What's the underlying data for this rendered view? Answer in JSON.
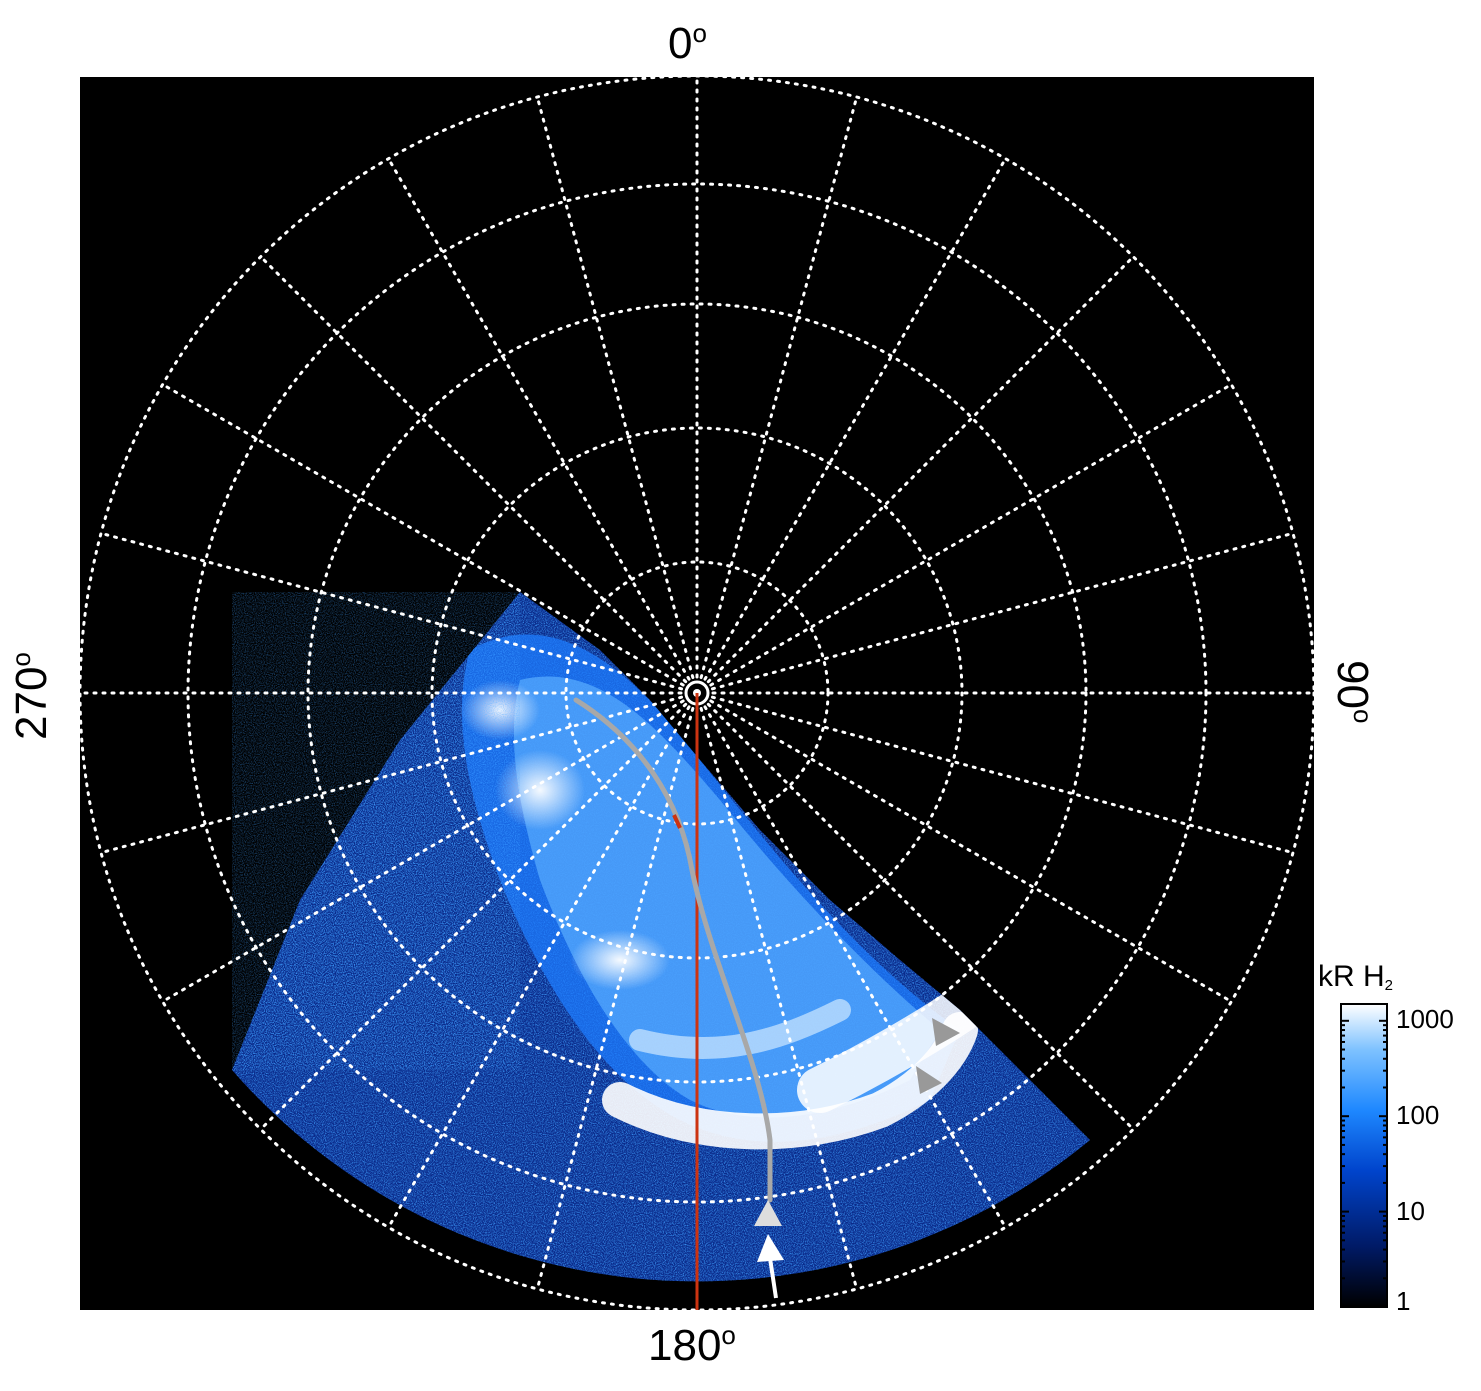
{
  "figure": {
    "axis_labels": {
      "top": "0",
      "right": "90",
      "bottom": "180",
      "left": "270",
      "degree_symbol": "o"
    },
    "colorbar": {
      "title_main": "kR H",
      "title_sub": "2",
      "ticks": [
        "1000",
        "100",
        "10",
        "1"
      ],
      "tick_values": [
        1000,
        100,
        10,
        1
      ],
      "scale": "log",
      "range": [
        1,
        1500
      ],
      "colors": [
        "#000000",
        "#001a66",
        "#0044cc",
        "#1e88ff",
        "#7ec2ff",
        "#ffffff"
      ]
    },
    "grid": {
      "style": "dotted",
      "color": "#ffffff",
      "rings": 5,
      "spokes": 24
    },
    "colors": {
      "background": "#000000",
      "meridian_line": "#cc3311",
      "track": "#a8a8a8",
      "arrow_grey": "#999999",
      "arrow_light": "#dddddd",
      "arrow_white": "#ffffff"
    }
  }
}
